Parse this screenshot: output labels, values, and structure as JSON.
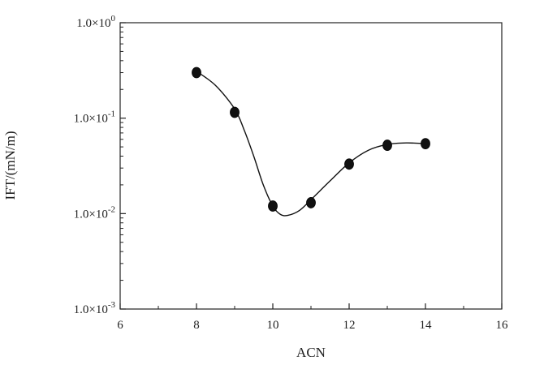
{
  "chart_data": {
    "type": "line",
    "title": "",
    "xlabel": "ACN",
    "ylabel": "IFT/(mN/m)",
    "xlim": [
      6,
      16
    ],
    "ylim": [
      0.001,
      1
    ],
    "yscale": "log",
    "grid": false,
    "legend": "none",
    "x_ticks": [
      {
        "value": 6,
        "label": "6"
      },
      {
        "value": 8,
        "label": "8"
      },
      {
        "value": 10,
        "label": "10"
      },
      {
        "value": 12,
        "label": "12"
      },
      {
        "value": 14,
        "label": "14"
      },
      {
        "value": 16,
        "label": "16"
      }
    ],
    "y_ticks": [
      {
        "value": 0.001,
        "base": "1.0×10",
        "exp": "-3"
      },
      {
        "value": 0.01,
        "base": "1.0×10",
        "exp": "-2"
      },
      {
        "value": 0.1,
        "base": "1.0×10",
        "exp": "-1"
      },
      {
        "value": 1,
        "base": "1.0×10",
        "exp": "0"
      }
    ],
    "series": [
      {
        "x": [
          8,
          9,
          10,
          11,
          12,
          13,
          14
        ],
        "y": [
          0.3,
          0.115,
          0.012,
          0.013,
          0.033,
          0.052,
          0.054
        ],
        "color": "#111111"
      }
    ],
    "fit_curve": {
      "x": [
        8,
        8.5,
        9,
        9.25,
        9.5,
        9.75,
        10,
        10.2,
        10.4,
        10.7,
        11,
        11.5,
        12,
        12.5,
        13,
        13.5,
        14
      ],
      "y": [
        0.31,
        0.22,
        0.125,
        0.075,
        0.04,
        0.02,
        0.012,
        0.0098,
        0.0096,
        0.0108,
        0.014,
        0.022,
        0.034,
        0.046,
        0.053,
        0.055,
        0.054
      ]
    }
  }
}
